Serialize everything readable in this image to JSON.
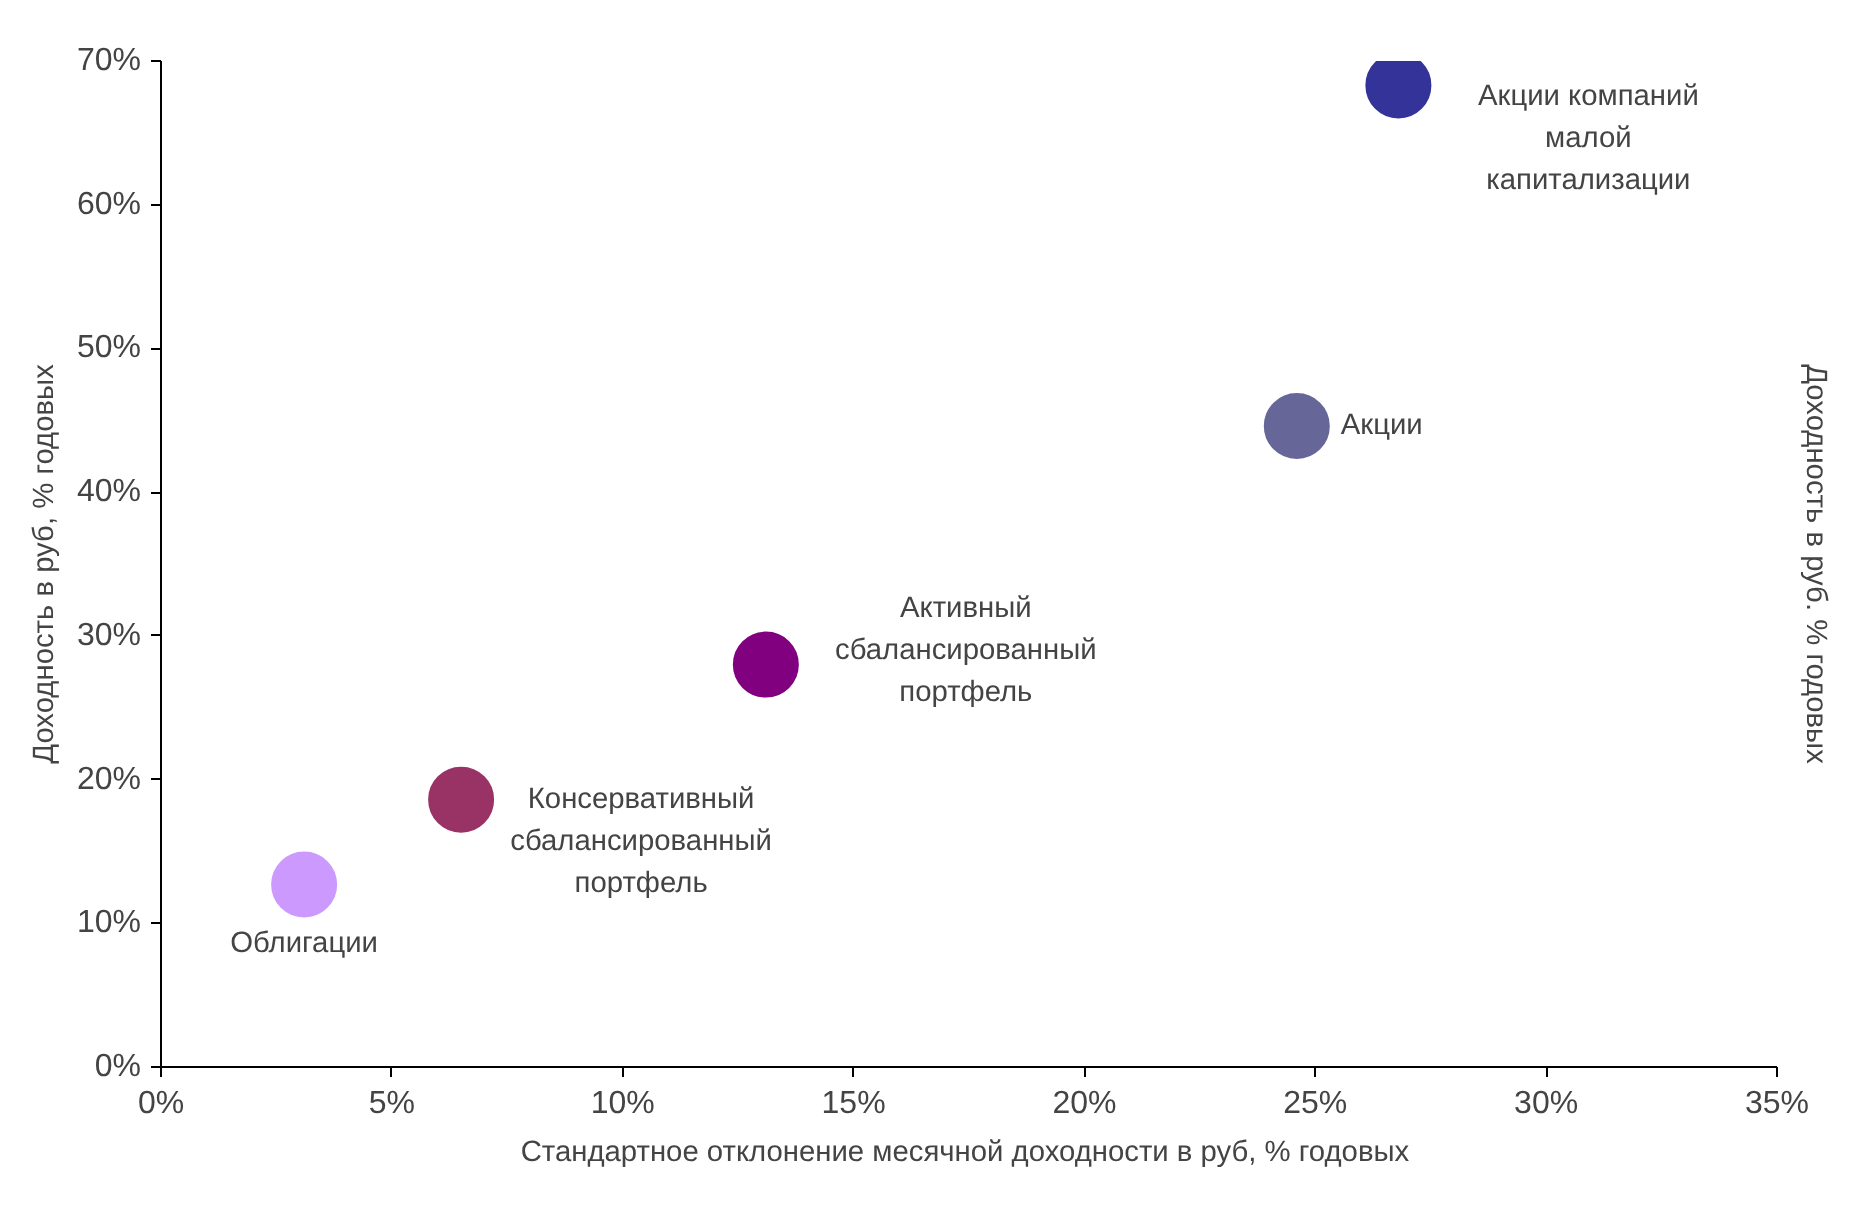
{
  "chart_data": {
    "type": "scatter",
    "xlabel": "Стандартное отклонение  месячной доходности в руб, % годовых",
    "ylabel": "Доходность в руб, % годовых",
    "y2label": "Доходность в руб. % годовых",
    "series": [
      {
        "name": "Облигации",
        "color": "#cc99ff",
        "x": [
          3.1
        ],
        "values": [
          12.7
        ]
      },
      {
        "name": "Консервативный\nсбалансированный\nпортфель",
        "color": "#993366",
        "x": [
          6.5
        ],
        "values": [
          18.6
        ]
      },
      {
        "name": "Активный\nсбалансированный\nпортфель",
        "color": "#800080",
        "x": [
          13.1
        ],
        "values": [
          28.0
        ]
      },
      {
        "name": "Акции",
        "color": "#666699",
        "x": [
          24.6
        ],
        "values": [
          44.6
        ]
      },
      {
        "name": "Акции компаний\nмалой\nкапитализации",
        "color": "#333399",
        "x": [
          26.8
        ],
        "values": [
          68.3
        ]
      }
    ],
    "xlim": [
      0,
      35
    ],
    "xticks": [
      {
        "value": 0,
        "label": "0%"
      },
      {
        "value": 5,
        "label": "5%"
      },
      {
        "value": 10,
        "label": "10%"
      },
      {
        "value": 15,
        "label": "15%"
      },
      {
        "value": 20,
        "label": "20%"
      },
      {
        "value": 25,
        "label": "25%"
      },
      {
        "value": 30,
        "label": "30%"
      },
      {
        "value": 35,
        "label": "35%"
      }
    ],
    "ylim": [
      0,
      70
    ],
    "yticks": [
      {
        "value": 0,
        "label": "0%"
      },
      {
        "value": 10,
        "label": "10%"
      },
      {
        "value": 20,
        "label": "20%"
      },
      {
        "value": 30,
        "label": "30%"
      },
      {
        "value": 40,
        "label": "40%"
      },
      {
        "value": 50,
        "label": "50%"
      },
      {
        "value": 60,
        "label": "60%"
      },
      {
        "value": 70,
        "label": "70%"
      }
    ],
    "marker": "circle",
    "grid": false,
    "legend": false
  }
}
